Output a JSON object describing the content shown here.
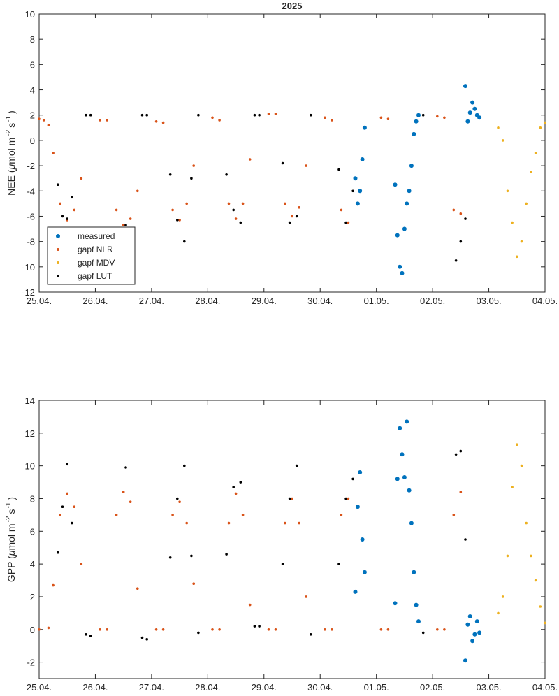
{
  "figure_title": "2025",
  "x_tick_labels": [
    "25.04.",
    "26.04.",
    "27.04.",
    "28.04.",
    "29.04.",
    "30.04.",
    "01.05.",
    "02.05.",
    "03.05.",
    "04.05."
  ],
  "colors": {
    "measured": "#0072BD",
    "gapf_nlr": "#D95319",
    "gapf_mdv": "#EDB120",
    "gapf_lut": "#000000",
    "axis": "#262626"
  },
  "legend": {
    "entries": [
      {
        "key": "measured",
        "label": "measured"
      },
      {
        "key": "gapf_nlr",
        "label": "gapf NLR"
      },
      {
        "key": "gapf_mdv",
        "label": "gapf MDV"
      },
      {
        "key": "gapf_lut",
        "label": "gapf LUT"
      }
    ],
    "location": "bottom-left of top panel"
  },
  "chart_data": [
    {
      "type": "scatter",
      "panel": "NEE",
      "title": "2025",
      "ylabel_main": "NEE (",
      "ylabel_mu": "μ",
      "ylabel_unit": "mol m",
      "ylabel_exp1": "-2",
      "ylabel_s": "s",
      "ylabel_exp2": "-1",
      "ylabel_close": ")",
      "xlim": [
        "2025-04-25",
        "2025-05-04"
      ],
      "ylim": [
        -12,
        10
      ],
      "yticks": [
        -12,
        -10,
        -8,
        -6,
        -4,
        -2,
        0,
        2,
        4,
        6,
        8,
        10
      ],
      "grid": false,
      "series": [
        {
          "name": "measured",
          "key": "measured",
          "x": [
            "2025-04-30T15:00",
            "2025-04-30T16:00",
            "2025-04-30T17:00",
            "2025-04-30T18:00",
            "2025-04-30T19:00",
            "2025-05-01T08:00",
            "2025-05-01T09:00",
            "2025-05-01T10:00",
            "2025-05-01T11:00",
            "2025-05-01T12:00",
            "2025-05-01T13:00",
            "2025-05-01T14:00",
            "2025-05-01T15:00",
            "2025-05-01T16:00",
            "2025-05-01T17:00",
            "2025-05-01T18:00",
            "2025-05-02T14:00",
            "2025-05-02T15:00",
            "2025-05-02T16:00",
            "2025-05-02T17:00",
            "2025-05-02T18:00",
            "2025-05-02T19:00",
            "2025-05-02T20:00"
          ],
          "y": [
            -3.0,
            -5.0,
            -4.0,
            -1.5,
            1.0,
            -3.5,
            -7.5,
            -10.0,
            -10.5,
            -7.0,
            -5.0,
            -4.0,
            -2.0,
            0.5,
            1.5,
            2.0,
            4.3,
            1.5,
            2.2,
            3.0,
            2.5,
            2.0,
            1.8
          ]
        },
        {
          "name": "gapf NLR",
          "key": "gapf_nlr",
          "x": [
            "2025-04-25T00:00",
            "2025-04-25T02:00",
            "2025-04-25T04:00",
            "2025-04-25T06:00",
            "2025-04-25T09:00",
            "2025-04-25T12:00",
            "2025-04-25T15:00",
            "2025-04-25T18:00",
            "2025-04-26T02:00",
            "2025-04-26T05:00",
            "2025-04-26T09:00",
            "2025-04-26T12:00",
            "2025-04-26T15:00",
            "2025-04-26T18:00",
            "2025-04-27T02:00",
            "2025-04-27T05:00",
            "2025-04-27T09:00",
            "2025-04-27T12:00",
            "2025-04-27T15:00",
            "2025-04-27T18:00",
            "2025-04-28T02:00",
            "2025-04-28T05:00",
            "2025-04-28T09:00",
            "2025-04-28T12:00",
            "2025-04-28T15:00",
            "2025-04-28T18:00",
            "2025-04-29T02:00",
            "2025-04-29T05:00",
            "2025-04-29T09:00",
            "2025-04-29T12:00",
            "2025-04-29T15:00",
            "2025-04-29T18:00",
            "2025-04-30T02:00",
            "2025-04-30T05:00",
            "2025-04-30T09:00",
            "2025-04-30T12:00",
            "2025-05-01T02:00",
            "2025-05-01T05:00",
            "2025-05-02T02:00",
            "2025-05-02T05:00",
            "2025-05-02T09:00",
            "2025-05-02T12:00"
          ],
          "y": [
            1.7,
            1.6,
            1.2,
            -1.0,
            -5.0,
            -6.3,
            -5.5,
            -3.0,
            1.6,
            1.6,
            -5.5,
            -6.7,
            -6.2,
            -4.0,
            1.5,
            1.4,
            -5.5,
            -6.3,
            -5.0,
            -2.0,
            1.8,
            1.6,
            -5.0,
            -6.2,
            -5.0,
            -1.5,
            2.1,
            2.1,
            -5.0,
            -6.0,
            -5.3,
            -2.0,
            1.8,
            1.6,
            -5.5,
            -6.5,
            1.8,
            1.7,
            1.9,
            1.8,
            -5.5,
            -5.8
          ]
        },
        {
          "name": "gapf MDV",
          "key": "gapf_mdv",
          "x": [
            "2025-05-03T04:00",
            "2025-05-03T06:00",
            "2025-05-03T08:00",
            "2025-05-03T10:00",
            "2025-05-03T12:00",
            "2025-05-03T14:00",
            "2025-05-03T16:00",
            "2025-05-03T18:00",
            "2025-05-03T20:00",
            "2025-05-03T22:00",
            "2025-05-04T00:00"
          ],
          "y": [
            1.0,
            0.0,
            -4.0,
            -6.5,
            -9.2,
            -8.0,
            -5.0,
            -2.5,
            -1.0,
            1.0,
            1.4
          ]
        },
        {
          "name": "gapf LUT",
          "key": "gapf_lut",
          "x": [
            "2025-04-25T08:00",
            "2025-04-25T10:00",
            "2025-04-25T12:00",
            "2025-04-25T14:00",
            "2025-04-25T20:00",
            "2025-04-25T22:00",
            "2025-04-26T13:00",
            "2025-04-26T20:00",
            "2025-04-26T22:00",
            "2025-04-27T08:00",
            "2025-04-27T11:00",
            "2025-04-27T14:00",
            "2025-04-27T17:00",
            "2025-04-27T20:00",
            "2025-04-28T08:00",
            "2025-04-28T11:00",
            "2025-04-28T14:00",
            "2025-04-28T20:00",
            "2025-04-28T22:00",
            "2025-04-29T08:00",
            "2025-04-29T11:00",
            "2025-04-29T14:00",
            "2025-04-29T20:00",
            "2025-04-30T08:00",
            "2025-04-30T11:00",
            "2025-04-30T14:00",
            "2025-05-01T20:00",
            "2025-05-02T10:00",
            "2025-05-02T12:00",
            "2025-05-02T14:00"
          ],
          "y": [
            -3.5,
            -6.0,
            -6.2,
            -4.5,
            2.0,
            2.0,
            -6.7,
            2.0,
            2.0,
            -2.7,
            -6.3,
            -8.0,
            -3.0,
            2.0,
            -2.7,
            -5.5,
            -6.5,
            2.0,
            2.0,
            -1.8,
            -6.5,
            -6.0,
            2.0,
            -2.3,
            -6.5,
            -4.0,
            2.0,
            -9.5,
            -8.0,
            -6.2
          ]
        }
      ]
    },
    {
      "type": "scatter",
      "panel": "GPP",
      "title": "",
      "ylabel_main": "GPP (",
      "ylabel_mu": "μ",
      "ylabel_unit": "mol m",
      "ylabel_exp1": "-2",
      "ylabel_s": "s",
      "ylabel_exp2": "-1",
      "ylabel_close": ")",
      "xlim": [
        "2025-04-25",
        "2025-05-04"
      ],
      "ylim": [
        -3,
        14
      ],
      "yticks": [
        -2,
        0,
        2,
        4,
        6,
        8,
        10,
        12,
        14
      ],
      "grid": false,
      "series": [
        {
          "name": "measured",
          "key": "measured",
          "x": [
            "2025-04-30T15:00",
            "2025-04-30T16:00",
            "2025-04-30T17:00",
            "2025-04-30T18:00",
            "2025-04-30T19:00",
            "2025-05-01T08:00",
            "2025-05-01T09:00",
            "2025-05-01T10:00",
            "2025-05-01T11:00",
            "2025-05-01T12:00",
            "2025-05-01T13:00",
            "2025-05-01T14:00",
            "2025-05-01T15:00",
            "2025-05-01T16:00",
            "2025-05-01T17:00",
            "2025-05-01T18:00",
            "2025-05-02T14:00",
            "2025-05-02T15:00",
            "2025-05-02T16:00",
            "2025-05-02T17:00",
            "2025-05-02T18:00",
            "2025-05-02T19:00",
            "2025-05-02T20:00"
          ],
          "y": [
            2.3,
            7.5,
            9.6,
            5.5,
            3.5,
            1.6,
            9.2,
            12.3,
            10.7,
            9.3,
            12.7,
            8.5,
            6.5,
            3.5,
            1.5,
            0.5,
            -1.9,
            0.3,
            0.8,
            -0.7,
            -0.3,
            0.5,
            -0.2
          ]
        },
        {
          "name": "gapf NLR",
          "key": "gapf_nlr",
          "x": [
            "2025-04-25T00:00",
            "2025-04-25T04:00",
            "2025-04-25T06:00",
            "2025-04-25T09:00",
            "2025-04-25T12:00",
            "2025-04-25T15:00",
            "2025-04-25T18:00",
            "2025-04-26T02:00",
            "2025-04-26T05:00",
            "2025-04-26T09:00",
            "2025-04-26T12:00",
            "2025-04-26T15:00",
            "2025-04-26T18:00",
            "2025-04-27T02:00",
            "2025-04-27T05:00",
            "2025-04-27T09:00",
            "2025-04-27T12:00",
            "2025-04-27T15:00",
            "2025-04-27T18:00",
            "2025-04-28T02:00",
            "2025-04-28T05:00",
            "2025-04-28T09:00",
            "2025-04-28T12:00",
            "2025-04-28T15:00",
            "2025-04-28T18:00",
            "2025-04-29T02:00",
            "2025-04-29T05:00",
            "2025-04-29T09:00",
            "2025-04-29T12:00",
            "2025-04-29T15:00",
            "2025-04-29T18:00",
            "2025-04-30T02:00",
            "2025-04-30T05:00",
            "2025-04-30T09:00",
            "2025-04-30T12:00",
            "2025-05-01T02:00",
            "2025-05-01T05:00",
            "2025-05-02T02:00",
            "2025-05-02T05:00",
            "2025-05-02T09:00",
            "2025-05-02T12:00"
          ],
          "y": [
            0.0,
            0.1,
            2.7,
            7.0,
            8.3,
            7.5,
            4.0,
            0.0,
            0.0,
            7.0,
            8.4,
            7.8,
            2.5,
            0.0,
            0.0,
            7.0,
            7.8,
            6.5,
            2.8,
            0.0,
            0.0,
            6.5,
            8.3,
            7.0,
            1.5,
            0.0,
            0.0,
            6.5,
            8.0,
            6.5,
            2.0,
            0.0,
            0.0,
            7.0,
            8.0,
            0.0,
            0.0,
            0.0,
            0.0,
            7.0,
            8.4
          ]
        },
        {
          "name": "gapf MDV",
          "key": "gapf_mdv",
          "x": [
            "2025-05-03T04:00",
            "2025-05-03T06:00",
            "2025-05-03T08:00",
            "2025-05-03T10:00",
            "2025-05-03T12:00",
            "2025-05-03T14:00",
            "2025-05-03T16:00",
            "2025-05-03T18:00",
            "2025-05-03T20:00",
            "2025-05-03T22:00",
            "2025-05-04T00:00"
          ],
          "y": [
            1.0,
            2.0,
            4.5,
            8.7,
            11.3,
            10.0,
            6.5,
            4.5,
            3.0,
            1.4,
            0.4
          ]
        },
        {
          "name": "gapf LUT",
          "key": "gapf_lut",
          "x": [
            "2025-04-25T08:00",
            "2025-04-25T10:00",
            "2025-04-25T12:00",
            "2025-04-25T14:00",
            "2025-04-25T20:00",
            "2025-04-25T22:00",
            "2025-04-26T13:00",
            "2025-04-26T20:00",
            "2025-04-26T22:00",
            "2025-04-27T08:00",
            "2025-04-27T11:00",
            "2025-04-27T14:00",
            "2025-04-27T17:00",
            "2025-04-27T20:00",
            "2025-04-28T08:00",
            "2025-04-28T11:00",
            "2025-04-28T14:00",
            "2025-04-28T20:00",
            "2025-04-28T22:00",
            "2025-04-29T08:00",
            "2025-04-29T11:00",
            "2025-04-29T14:00",
            "2025-04-29T20:00",
            "2025-04-30T08:00",
            "2025-04-30T11:00",
            "2025-04-30T14:00",
            "2025-05-01T20:00",
            "2025-05-02T10:00",
            "2025-05-02T12:00",
            "2025-05-02T14:00"
          ],
          "y": [
            4.7,
            7.5,
            10.1,
            6.5,
            -0.3,
            -0.4,
            9.9,
            -0.5,
            -0.6,
            4.4,
            8.0,
            10.0,
            4.5,
            -0.2,
            4.6,
            8.7,
            9.0,
            0.2,
            0.2,
            4.0,
            8.0,
            10.0,
            -0.3,
            4.0,
            8.0,
            9.2,
            -0.2,
            10.7,
            10.9,
            5.5
          ]
        }
      ]
    }
  ]
}
